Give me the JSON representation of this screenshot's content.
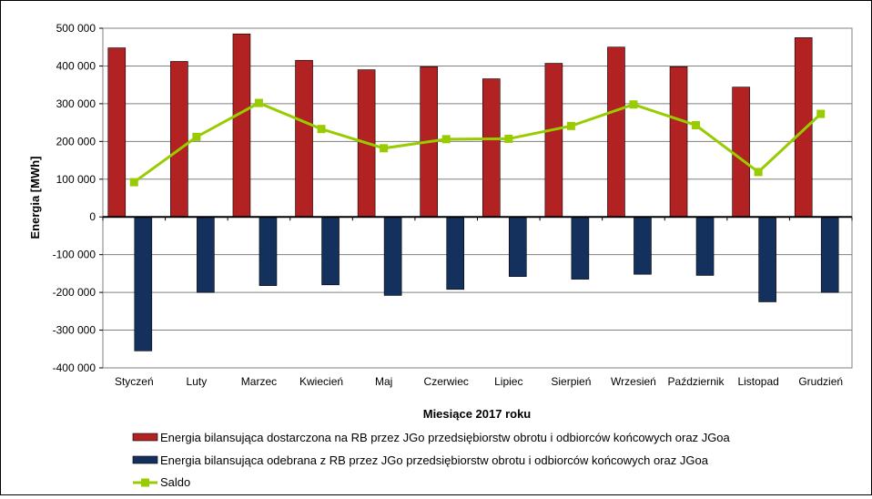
{
  "chart_data": {
    "type": "bar",
    "xlabel": "Miesiące 2017  roku",
    "ylabel": "Energia [MWh]",
    "ylim": [
      -400000,
      500000
    ],
    "yticks": [
      500000,
      400000,
      300000,
      200000,
      100000,
      0,
      -100000,
      -200000,
      -300000,
      -400000
    ],
    "ytick_labels": [
      "500 000",
      "400 000",
      "300 000",
      "200 000",
      "100 000",
      "0",
      "-100 000",
      "-200 000",
      "-300 000",
      "-400 000"
    ],
    "grid": true,
    "legend_position": "bottom",
    "categories": [
      "Styczeń",
      "Luty",
      "Marzec",
      "Kwiecień",
      "Maj",
      "Czerwiec",
      "Lipiec",
      "Sierpień",
      "Wrzesień",
      "Październik",
      "Listopad",
      "Grudzień"
    ],
    "series": [
      {
        "name": "Energia bilansująca dostarczona na RB przez JGo przedsiębiorstw obrotu i odbiorców końcowych oraz JGoa",
        "type": "bar",
        "color": "#b22222",
        "values": [
          448000,
          412000,
          485000,
          415000,
          390000,
          398000,
          366000,
          407000,
          450000,
          398000,
          344000,
          475000
        ]
      },
      {
        "name": "Energia bilansująca odebrana z RB przez JGo przedsiębiorstw obrotu i odbiorców końcowych oraz JGoa",
        "type": "bar",
        "color": "#14305c",
        "values": [
          -355000,
          -200000,
          -182000,
          -180000,
          -208000,
          -192000,
          -158000,
          -165000,
          -152000,
          -155000,
          -225000,
          -200000
        ]
      },
      {
        "name": "Saldo",
        "type": "line",
        "color": "#99cc00",
        "values": [
          92000,
          212000,
          302000,
          233000,
          182000,
          206000,
          207000,
          241000,
          298000,
          243000,
          119000,
          273000
        ]
      }
    ]
  }
}
